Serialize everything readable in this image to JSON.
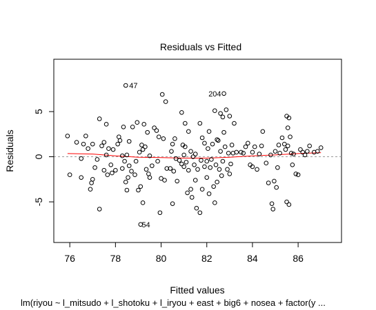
{
  "chart_data": {
    "type": "scatter",
    "title": "Residuals vs Fitted",
    "xlabel": "Fitted values",
    "ylabel": "Residuals",
    "subtitle": "lm(riyou ~ l_mitsudo + l_shotoku + l_iryou + east + big6 + nosea + factor(y ...",
    "xlim": [
      75.3,
      87.9
    ],
    "ylim": [
      -9.5,
      10.8
    ],
    "xticks": [
      76,
      78,
      80,
      82,
      84,
      86
    ],
    "yticks": [
      -5,
      0,
      5
    ],
    "colors": {
      "points": "#000000",
      "smooth": "#ff0000",
      "zero_line": "#999999"
    },
    "annotations": [
      {
        "label": "47",
        "x": 78.45,
        "y": 7.9
      },
      {
        "label": "204",
        "x": 82.75,
        "y": 7.0
      },
      {
        "label": "54",
        "x": 79.0,
        "y": -7.5
      }
    ],
    "points": [
      {
        "x": 75.9,
        "y": 2.3
      },
      {
        "x": 76.0,
        "y": -2.0
      },
      {
        "x": 76.3,
        "y": 1.6
      },
      {
        "x": 76.5,
        "y": -0.2
      },
      {
        "x": 76.5,
        "y": -2.3
      },
      {
        "x": 76.6,
        "y": 1.4
      },
      {
        "x": 76.7,
        "y": 2.3
      },
      {
        "x": 76.8,
        "y": 0.9
      },
      {
        "x": 76.9,
        "y": -3.6
      },
      {
        "x": 76.95,
        "y": -2.9
      },
      {
        "x": 77.0,
        "y": 1.4
      },
      {
        "x": 77.0,
        "y": -2.5
      },
      {
        "x": 77.1,
        "y": -1.2
      },
      {
        "x": 77.2,
        "y": -0.3
      },
      {
        "x": 77.3,
        "y": 4.2
      },
      {
        "x": 77.3,
        "y": -5.8
      },
      {
        "x": 77.4,
        "y": 1.2
      },
      {
        "x": 77.5,
        "y": -1.5
      },
      {
        "x": 77.5,
        "y": 1.6
      },
      {
        "x": 77.6,
        "y": 3.6
      },
      {
        "x": 77.6,
        "y": 0.2
      },
      {
        "x": 77.65,
        "y": -2.0
      },
      {
        "x": 77.7,
        "y": 0.9
      },
      {
        "x": 77.8,
        "y": -0.9
      },
      {
        "x": 77.85,
        "y": -1.8
      },
      {
        "x": 77.9,
        "y": 0.8
      },
      {
        "x": 78.0,
        "y": -1.5
      },
      {
        "x": 78.1,
        "y": 1.4
      },
      {
        "x": 78.15,
        "y": 2.2
      },
      {
        "x": 78.2,
        "y": 1.8
      },
      {
        "x": 78.3,
        "y": 0.1
      },
      {
        "x": 78.3,
        "y": -1.3
      },
      {
        "x": 78.35,
        "y": 3.3
      },
      {
        "x": 78.4,
        "y": -0.5
      },
      {
        "x": 78.45,
        "y": -2.8
      },
      {
        "x": 78.5,
        "y": 0.2
      },
      {
        "x": 78.5,
        "y": -3.7
      },
      {
        "x": 78.55,
        "y": -2.3
      },
      {
        "x": 78.6,
        "y": 1.7
      },
      {
        "x": 78.6,
        "y": -1.0
      },
      {
        "x": 78.7,
        "y": -1.6
      },
      {
        "x": 78.75,
        "y": 3.3
      },
      {
        "x": 78.85,
        "y": -2.0
      },
      {
        "x": 78.9,
        "y": -0.5
      },
      {
        "x": 78.95,
        "y": 3.8
      },
      {
        "x": 79.0,
        "y": -3.7
      },
      {
        "x": 79.05,
        "y": 0.5
      },
      {
        "x": 79.1,
        "y": -3.3
      },
      {
        "x": 79.15,
        "y": 1.3
      },
      {
        "x": 79.2,
        "y": 0.8
      },
      {
        "x": 79.2,
        "y": -5.1
      },
      {
        "x": 79.25,
        "y": 3.6
      },
      {
        "x": 79.3,
        "y": 1.1
      },
      {
        "x": 79.35,
        "y": -1.4
      },
      {
        "x": 79.4,
        "y": 2.7
      },
      {
        "x": 79.45,
        "y": -1.9
      },
      {
        "x": 79.5,
        "y": 0.1
      },
      {
        "x": 79.5,
        "y": -2.3
      },
      {
        "x": 79.6,
        "y": -1.0
      },
      {
        "x": 79.7,
        "y": 3.2
      },
      {
        "x": 79.8,
        "y": 2.9
      },
      {
        "x": 79.85,
        "y": -0.5
      },
      {
        "x": 79.9,
        "y": 2.2
      },
      {
        "x": 79.95,
        "y": -6.2
      },
      {
        "x": 80.0,
        "y": -2.4
      },
      {
        "x": 80.05,
        "y": 6.9
      },
      {
        "x": 80.1,
        "y": 2.0
      },
      {
        "x": 80.15,
        "y": -2.6
      },
      {
        "x": 80.2,
        "y": 6.1
      },
      {
        "x": 80.25,
        "y": -1.3
      },
      {
        "x": 80.4,
        "y": -1.3
      },
      {
        "x": 80.45,
        "y": 0.6
      },
      {
        "x": 80.5,
        "y": 1.4
      },
      {
        "x": 80.5,
        "y": -5.2
      },
      {
        "x": 80.55,
        "y": -1.6
      },
      {
        "x": 80.6,
        "y": 2.0
      },
      {
        "x": 80.65,
        "y": -0.2
      },
      {
        "x": 80.7,
        "y": -2.7
      },
      {
        "x": 80.8,
        "y": -0.4
      },
      {
        "x": 80.9,
        "y": -0.8
      },
      {
        "x": 80.9,
        "y": 4.9
      },
      {
        "x": 80.95,
        "y": 1.3
      },
      {
        "x": 81.0,
        "y": 0.2
      },
      {
        "x": 81.0,
        "y": -1.1
      },
      {
        "x": 81.05,
        "y": 1.1
      },
      {
        "x": 81.05,
        "y": 3.7
      },
      {
        "x": 81.1,
        "y": -0.6
      },
      {
        "x": 81.15,
        "y": -4.0
      },
      {
        "x": 81.2,
        "y": 2.8
      },
      {
        "x": 81.2,
        "y": -1.5
      },
      {
        "x": 81.3,
        "y": 0.6
      },
      {
        "x": 81.3,
        "y": -3.6
      },
      {
        "x": 81.35,
        "y": -4.5
      },
      {
        "x": 81.4,
        "y": 0.0
      },
      {
        "x": 81.45,
        "y": -0.9
      },
      {
        "x": 81.5,
        "y": 0.3
      },
      {
        "x": 81.5,
        "y": -2.6
      },
      {
        "x": 81.55,
        "y": -5.7
      },
      {
        "x": 81.6,
        "y": -1.4
      },
      {
        "x": 81.7,
        "y": 3.7
      },
      {
        "x": 81.7,
        "y": -6.2
      },
      {
        "x": 81.75,
        "y": -0.4
      },
      {
        "x": 81.8,
        "y": 2.1
      },
      {
        "x": 81.8,
        "y": -3.6
      },
      {
        "x": 81.9,
        "y": 1.5
      },
      {
        "x": 81.9,
        "y": -1.1
      },
      {
        "x": 82.0,
        "y": -0.5
      },
      {
        "x": 82.0,
        "y": -2.3
      },
      {
        "x": 82.05,
        "y": 0.9
      },
      {
        "x": 82.1,
        "y": 2.8
      },
      {
        "x": 82.1,
        "y": -4.1
      },
      {
        "x": 82.15,
        "y": -1.2
      },
      {
        "x": 82.2,
        "y": -0.3
      },
      {
        "x": 82.25,
        "y": 1.4
      },
      {
        "x": 82.3,
        "y": -3.3
      },
      {
        "x": 82.35,
        "y": 5.1
      },
      {
        "x": 82.35,
        "y": -5.1
      },
      {
        "x": 82.4,
        "y": -0.9
      },
      {
        "x": 82.45,
        "y": 1.9
      },
      {
        "x": 82.45,
        "y": -2.8
      },
      {
        "x": 82.5,
        "y": 1.8
      },
      {
        "x": 82.55,
        "y": -1.4
      },
      {
        "x": 82.6,
        "y": 4.8
      },
      {
        "x": 82.6,
        "y": 0.6
      },
      {
        "x": 82.65,
        "y": -2.1
      },
      {
        "x": 82.7,
        "y": 4.4
      },
      {
        "x": 82.7,
        "y": -0.5
      },
      {
        "x": 82.75,
        "y": 7.0
      },
      {
        "x": 82.75,
        "y": 2.7
      },
      {
        "x": 82.8,
        "y": 1.1
      },
      {
        "x": 82.85,
        "y": 5.2
      },
      {
        "x": 82.9,
        "y": -1.4
      },
      {
        "x": 82.95,
        "y": 0.4
      },
      {
        "x": 83.0,
        "y": -1.9
      },
      {
        "x": 83.0,
        "y": 4.5
      },
      {
        "x": 83.05,
        "y": -0.8
      },
      {
        "x": 83.1,
        "y": 1.3
      },
      {
        "x": 83.15,
        "y": 0.4
      },
      {
        "x": 83.2,
        "y": 3.7
      },
      {
        "x": 83.3,
        "y": 0.5
      },
      {
        "x": 83.5,
        "y": 0.5
      },
      {
        "x": 83.6,
        "y": 0.4
      },
      {
        "x": 83.7,
        "y": 1.1
      },
      {
        "x": 83.8,
        "y": 1.5
      },
      {
        "x": 83.9,
        "y": -0.9
      },
      {
        "x": 84.0,
        "y": -1.1
      },
      {
        "x": 84.0,
        "y": 0.5
      },
      {
        "x": 84.1,
        "y": 1.1
      },
      {
        "x": 84.2,
        "y": -1.4
      },
      {
        "x": 84.3,
        "y": 0.3
      },
      {
        "x": 84.4,
        "y": 1.2
      },
      {
        "x": 84.45,
        "y": 2.8
      },
      {
        "x": 84.6,
        "y": -0.7
      },
      {
        "x": 84.7,
        "y": -2.9
      },
      {
        "x": 84.8,
        "y": 0.2
      },
      {
        "x": 84.85,
        "y": -5.2
      },
      {
        "x": 84.9,
        "y": -5.8
      },
      {
        "x": 84.95,
        "y": -2.7
      },
      {
        "x": 85.0,
        "y": 0.6
      },
      {
        "x": 85.05,
        "y": -3.4
      },
      {
        "x": 85.1,
        "y": -1.2
      },
      {
        "x": 85.15,
        "y": 1.3
      },
      {
        "x": 85.2,
        "y": 0.4
      },
      {
        "x": 85.3,
        "y": 2.1
      },
      {
        "x": 85.4,
        "y": 1.4
      },
      {
        "x": 85.45,
        "y": 0.8
      },
      {
        "x": 85.5,
        "y": 4.5
      },
      {
        "x": 85.5,
        "y": -5.0
      },
      {
        "x": 85.55,
        "y": 3.2
      },
      {
        "x": 85.55,
        "y": 1.2
      },
      {
        "x": 85.6,
        "y": -5.3
      },
      {
        "x": 85.6,
        "y": 4.3
      },
      {
        "x": 85.65,
        "y": 2.2
      },
      {
        "x": 85.7,
        "y": 0.4
      },
      {
        "x": 85.75,
        "y": -0.9
      },
      {
        "x": 85.8,
        "y": 0.3
      },
      {
        "x": 85.9,
        "y": -1.9
      },
      {
        "x": 86.0,
        "y": -2.0
      },
      {
        "x": 86.1,
        "y": 0.8
      },
      {
        "x": 86.2,
        "y": 0.5
      },
      {
        "x": 86.3,
        "y": 0.2
      },
      {
        "x": 86.4,
        "y": 0.6
      },
      {
        "x": 86.5,
        "y": 1.2
      },
      {
        "x": 86.7,
        "y": 0.5
      },
      {
        "x": 86.85,
        "y": 0.6
      },
      {
        "x": 87.0,
        "y": 1.0
      },
      {
        "x": 79.1,
        "y": -7.5
      },
      {
        "x": 78.45,
        "y": 7.9
      }
    ],
    "smooth": [
      {
        "x": 75.9,
        "y": 0.35
      },
      {
        "x": 77.0,
        "y": 0.3
      },
      {
        "x": 78.0,
        "y": 0.1
      },
      {
        "x": 79.0,
        "y": -0.05
      },
      {
        "x": 80.0,
        "y": -0.1
      },
      {
        "x": 81.0,
        "y": -0.15
      },
      {
        "x": 82.0,
        "y": -0.15
      },
      {
        "x": 83.0,
        "y": -0.05
      },
      {
        "x": 84.0,
        "y": 0.1
      },
      {
        "x": 85.0,
        "y": 0.2
      },
      {
        "x": 86.0,
        "y": 0.35
      },
      {
        "x": 87.0,
        "y": 0.45
      }
    ]
  }
}
